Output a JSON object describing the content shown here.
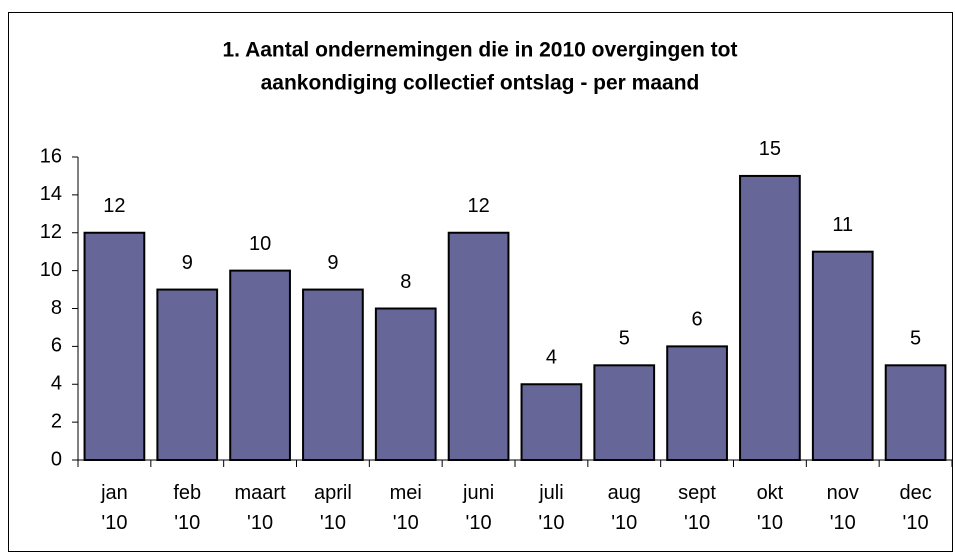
{
  "chart_data": {
    "type": "bar",
    "title": [
      "1. Aantal ondernemingen die in 2010 overgingen tot",
      "aankondiging collectief ontslag - per maand"
    ],
    "categories": [
      "jan '10",
      "feb '10",
      "maart '10",
      "april '10",
      "mei '10",
      "juni '10",
      "juli '10",
      "aug '10",
      "sept '10",
      "okt '10",
      "nov '10",
      "dec '10"
    ],
    "values": [
      12,
      9,
      10,
      9,
      8,
      12,
      4,
      5,
      6,
      15,
      11,
      5
    ],
    "color": "#666699",
    "ylim": [
      0,
      16
    ],
    "yticks": [
      0,
      2,
      4,
      6,
      8,
      10,
      12,
      14,
      16
    ],
    "grid": false
  }
}
